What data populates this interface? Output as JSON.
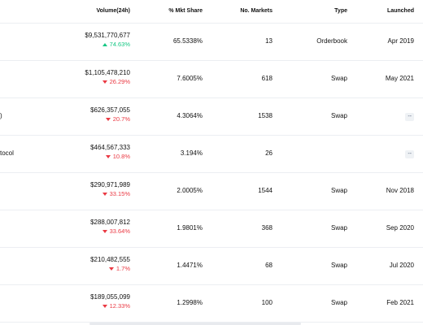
{
  "header": {
    "volume": "Volume(24h)",
    "share": "% Mkt Share",
    "markets": "No. Markets",
    "type": "Type",
    "launched": "Launched"
  },
  "rows": [
    {
      "name": "",
      "volume": "$9,531,770,677",
      "change": "74.63%",
      "direction": "up",
      "share": "65.5338%",
      "markets": "13",
      "type": "Orderbook",
      "launched": "Apr 2019"
    },
    {
      "name": "",
      "volume": "$1,105,478,210",
      "change": "26.29%",
      "direction": "down",
      "share": "7.6005%",
      "markets": "618",
      "type": "Swap",
      "launched": "May 2021"
    },
    {
      "name": ")",
      "volume": "$626,357,055",
      "change": "20.7%",
      "direction": "down",
      "share": "4.3064%",
      "markets": "1538",
      "type": "Swap",
      "launched": "--"
    },
    {
      "name": "tocol",
      "volume": "$464,567,333",
      "change": "10.8%",
      "direction": "down",
      "share": "3.194%",
      "markets": "26",
      "type": "",
      "launched": "--"
    },
    {
      "name": "",
      "volume": "$290,971,989",
      "change": "33.15%",
      "direction": "down",
      "share": "2.0005%",
      "markets": "1544",
      "type": "Swap",
      "launched": "Nov 2018"
    },
    {
      "name": "",
      "volume": "$288,007,812",
      "change": "33.64%",
      "direction": "down",
      "share": "1.9801%",
      "markets": "368",
      "type": "Swap",
      "launched": "Sep 2020"
    },
    {
      "name": "",
      "volume": "$210,482,555",
      "change": "1.7%",
      "direction": "down",
      "share": "1.4471%",
      "markets": "68",
      "type": "Swap",
      "launched": "Jul 2020"
    },
    {
      "name": "",
      "volume": "$189,055,099",
      "change": "12.33%",
      "direction": "down",
      "share": "1.2998%",
      "markets": "100",
      "type": "Swap",
      "launched": "Feb 2021"
    }
  ],
  "colors": {
    "up": "#16c784",
    "down": "#ea3943",
    "divider": "#eceef2"
  }
}
